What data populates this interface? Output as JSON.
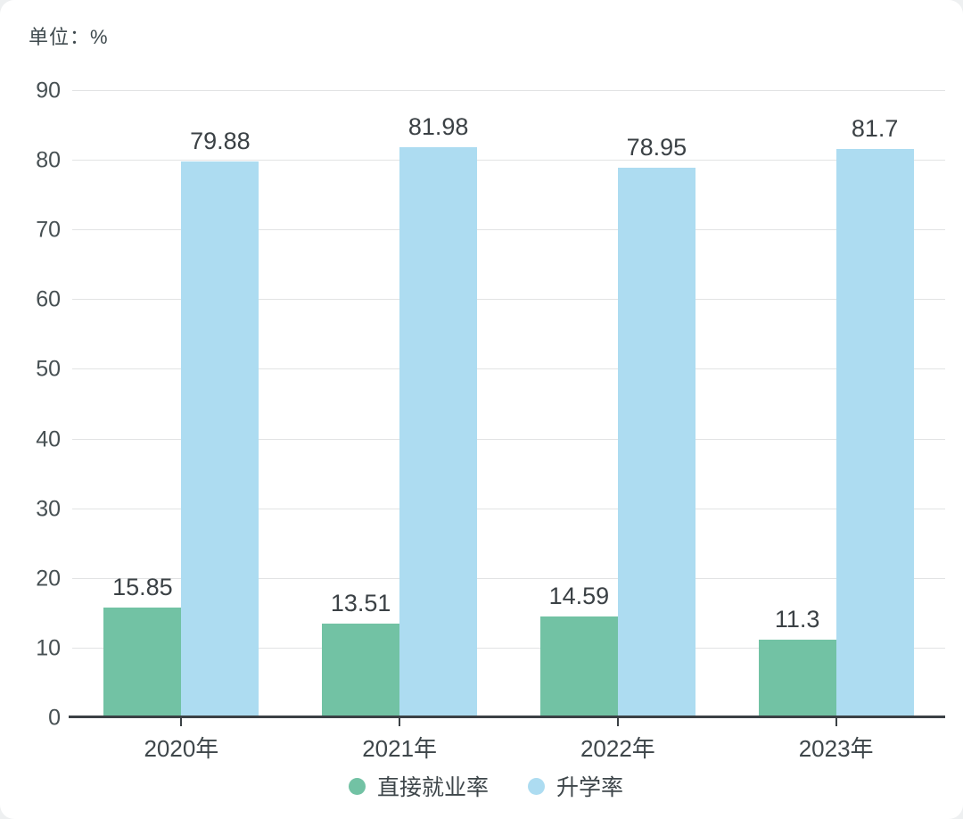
{
  "unit_label": "单位：%",
  "colors": {
    "employment_green": "#72c2a4",
    "enrollment_blue": "#addcf1",
    "gridline": "#e2e3e4",
    "axis": "#3b4145",
    "text": "#3e464a"
  },
  "chart_data": {
    "type": "bar",
    "title": "",
    "xlabel": "",
    "ylabel": "单位：%",
    "categories": [
      "2020年",
      "2021年",
      "2022年",
      "2023年"
    ],
    "series": [
      {
        "name": "直接就业率",
        "color": "#72c2a4",
        "values": [
          15.85,
          13.51,
          14.59,
          11.3
        ]
      },
      {
        "name": "升学率",
        "color": "#addcf1",
        "values": [
          79.88,
          81.98,
          78.95,
          81.7
        ]
      }
    ],
    "ylim": [
      0,
      90
    ],
    "y_ticks": [
      90,
      80,
      70,
      60,
      50,
      40,
      30,
      20,
      10,
      0
    ],
    "grid": true,
    "legend_position": "bottom"
  },
  "legend": {
    "items": [
      {
        "label": "直接就业率",
        "color": "#72c2a4"
      },
      {
        "label": "升学率",
        "color": "#addcf1"
      }
    ]
  }
}
